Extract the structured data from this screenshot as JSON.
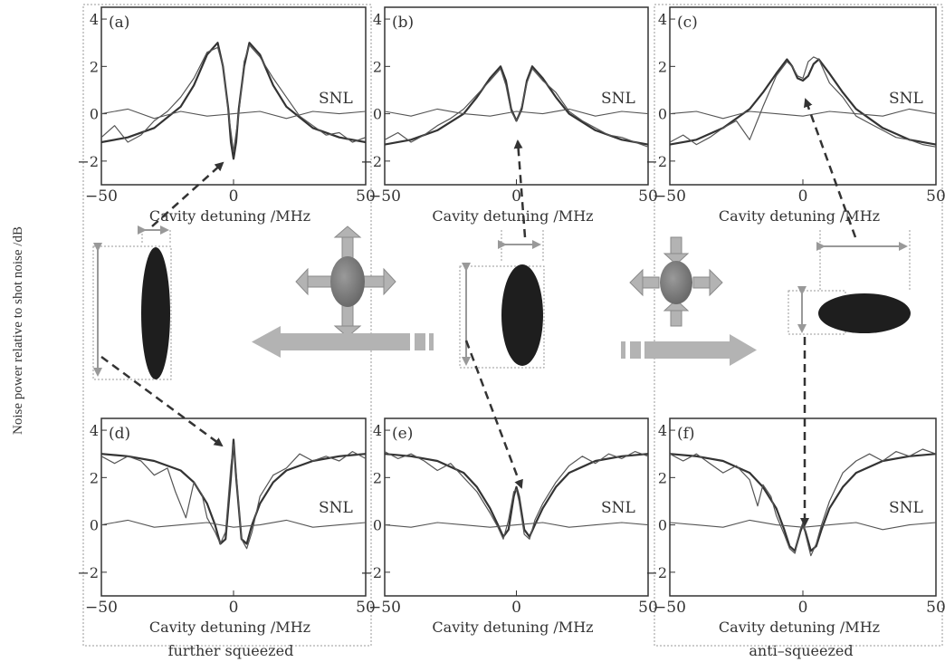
{
  "figure": {
    "ylabel": "Noise power relative to shot noise /dB",
    "left_caption": "further squeezed",
    "right_caption": "anti–squeezed",
    "colors": {
      "ink": "#333333",
      "thin": "#555555",
      "arrow_fill": "#b3b3b3",
      "arrow_stroke": "#8a8a8a",
      "dash_box": "#8f8f8f",
      "ellipse_dark": "#1e1e1e",
      "ellipse_mid": "#7a7a7a"
    }
  },
  "chart_data": [
    {
      "id": "a",
      "type": "line",
      "panel_label": "(a)",
      "xlabel": "Cavity detuning /MHz",
      "ylabel": "",
      "xlim": [
        -50,
        50
      ],
      "ylim": [
        -3,
        4.5
      ],
      "xticks": [
        -50,
        0,
        50
      ],
      "yticks": [
        -2,
        0,
        2,
        4
      ],
      "annotation": "SNL",
      "series": [
        {
          "kind": "fit",
          "x": [
            -50,
            -40,
            -30,
            -20,
            -15,
            -10,
            -6,
            -4,
            -2,
            -1,
            0,
            1,
            2,
            4,
            6,
            10,
            15,
            20,
            30,
            40,
            50
          ],
          "y": [
            -1.2,
            -1.0,
            -0.6,
            0.3,
            1.2,
            2.5,
            3.0,
            2.0,
            0.2,
            -1.2,
            -1.9,
            -1.2,
            0.2,
            2.0,
            3.0,
            2.5,
            1.2,
            0.3,
            -0.6,
            -1.0,
            -1.2
          ]
        },
        {
          "kind": "measured",
          "x": [
            -50,
            -45,
            -40,
            -35,
            -30,
            -25,
            -20,
            -15,
            -10,
            -6,
            -4,
            -2,
            0,
            2,
            4,
            6,
            10,
            15,
            20,
            25,
            30,
            35,
            40,
            45,
            50
          ],
          "y": [
            -1.0,
            -0.5,
            -1.2,
            -0.9,
            -0.3,
            0.1,
            0.7,
            1.5,
            2.6,
            2.8,
            2.0,
            0.1,
            -1.6,
            0.0,
            2.2,
            2.9,
            2.4,
            1.5,
            0.7,
            -0.1,
            -0.5,
            -0.9,
            -0.8,
            -1.2,
            -1.0
          ]
        },
        {
          "kind": "snl",
          "x": [
            -50,
            -40,
            -30,
            -20,
            -10,
            0,
            10,
            20,
            30,
            40,
            50
          ],
          "y": [
            0.0,
            0.2,
            -0.2,
            0.1,
            -0.1,
            0.0,
            0.1,
            -0.2,
            0.1,
            0.0,
            0.1
          ]
        }
      ]
    },
    {
      "id": "b",
      "type": "line",
      "panel_label": "(b)",
      "xlabel": "Cavity detuning /MHz",
      "ylabel": "",
      "xlim": [
        -50,
        50
      ],
      "ylim": [
        -3,
        4.5
      ],
      "xticks": [
        -50,
        0,
        50
      ],
      "yticks": [
        -2,
        0,
        2,
        4
      ],
      "annotation": "SNL",
      "series": [
        {
          "kind": "fit",
          "x": [
            -50,
            -40,
            -30,
            -20,
            -15,
            -10,
            -6,
            -4,
            -2,
            0,
            2,
            4,
            6,
            10,
            15,
            20,
            30,
            40,
            50
          ],
          "y": [
            -1.3,
            -1.1,
            -0.7,
            0.0,
            0.7,
            1.5,
            2.0,
            1.4,
            0.2,
            -0.3,
            0.2,
            1.4,
            2.0,
            1.5,
            0.7,
            0.0,
            -0.7,
            -1.1,
            -1.3
          ]
        },
        {
          "kind": "measured",
          "x": [
            -50,
            -45,
            -40,
            -35,
            -30,
            -25,
            -20,
            -15,
            -10,
            -6,
            -4,
            -2,
            0,
            2,
            4,
            6,
            10,
            15,
            20,
            25,
            30,
            35,
            40,
            45,
            50
          ],
          "y": [
            -1.1,
            -0.8,
            -1.2,
            -0.9,
            -0.5,
            -0.2,
            0.2,
            0.8,
            1.4,
            1.9,
            1.2,
            0.1,
            -0.3,
            0.3,
            1.3,
            1.9,
            1.4,
            0.9,
            0.1,
            -0.3,
            -0.6,
            -0.9,
            -1.0,
            -1.2,
            -1.4
          ]
        },
        {
          "kind": "snl",
          "x": [
            -50,
            -40,
            -30,
            -20,
            -10,
            0,
            10,
            20,
            30,
            40,
            50
          ],
          "y": [
            0.1,
            -0.1,
            0.2,
            0.0,
            -0.1,
            0.1,
            0.0,
            0.2,
            -0.1,
            0.1,
            0.0
          ]
        }
      ]
    },
    {
      "id": "c",
      "type": "line",
      "panel_label": "(c)",
      "xlabel": "Cavity detuning /MHz",
      "ylabel": "",
      "xlim": [
        -50,
        50
      ],
      "ylim": [
        -3,
        4.5
      ],
      "xticks": [
        -50,
        0,
        50
      ],
      "yticks": [
        -2,
        0,
        2,
        4
      ],
      "annotation": "SNL",
      "series": [
        {
          "kind": "fit",
          "x": [
            -50,
            -40,
            -30,
            -20,
            -15,
            -10,
            -6,
            -4,
            -2,
            0,
            2,
            4,
            6,
            10,
            15,
            20,
            30,
            40,
            50
          ],
          "y": [
            -1.3,
            -1.1,
            -0.6,
            0.2,
            0.9,
            1.7,
            2.3,
            2.0,
            1.5,
            1.4,
            1.6,
            2.1,
            2.3,
            1.7,
            0.9,
            0.2,
            -0.6,
            -1.1,
            -1.3
          ]
        },
        {
          "kind": "measured",
          "x": [
            -50,
            -45,
            -40,
            -35,
            -30,
            -25,
            -20,
            -15,
            -10,
            -6,
            -4,
            -2,
            0,
            2,
            4,
            6,
            10,
            15,
            20,
            25,
            30,
            35,
            40,
            45,
            50
          ],
          "y": [
            -1.2,
            -0.9,
            -1.3,
            -1.0,
            -0.6,
            -0.3,
            -1.1,
            0.3,
            1.6,
            2.2,
            2.0,
            1.6,
            1.5,
            2.2,
            2.4,
            2.3,
            1.3,
            0.7,
            -0.1,
            -0.4,
            -0.7,
            -1.0,
            -1.1,
            -1.3,
            -1.4
          ]
        },
        {
          "kind": "snl",
          "x": [
            -50,
            -40,
            -30,
            -20,
            -10,
            0,
            10,
            20,
            30,
            40,
            50
          ],
          "y": [
            0.0,
            0.1,
            -0.2,
            0.1,
            0.0,
            -0.1,
            0.1,
            0.0,
            -0.1,
            0.2,
            0.0
          ]
        }
      ]
    },
    {
      "id": "d",
      "type": "line",
      "panel_label": "(d)",
      "xlabel": "Cavity detuning /MHz",
      "ylabel": "",
      "xlim": [
        -50,
        50
      ],
      "ylim": [
        -3,
        4.5
      ],
      "xticks": [
        -50,
        0,
        50
      ],
      "yticks": [
        -2,
        0,
        2,
        4
      ],
      "annotation": "SNL",
      "series": [
        {
          "kind": "fit",
          "x": [
            -50,
            -40,
            -30,
            -20,
            -15,
            -10,
            -7,
            -5,
            -3,
            -1,
            0,
            1,
            3,
            5,
            7,
            10,
            15,
            20,
            30,
            40,
            50
          ],
          "y": [
            3.0,
            2.9,
            2.7,
            2.3,
            1.8,
            0.9,
            0.0,
            -0.8,
            -0.6,
            2.0,
            3.6,
            2.0,
            -0.6,
            -0.8,
            0.0,
            0.9,
            1.8,
            2.3,
            2.7,
            2.9,
            3.0
          ]
        },
        {
          "kind": "measured",
          "x": [
            -50,
            -45,
            -40,
            -35,
            -30,
            -25,
            -22,
            -18,
            -15,
            -12,
            -10,
            -7,
            -5,
            -3,
            -1,
            0,
            1,
            3,
            5,
            7,
            10,
            15,
            20,
            25,
            30,
            35,
            40,
            45,
            50
          ],
          "y": [
            2.9,
            2.6,
            2.9,
            2.7,
            2.1,
            2.4,
            1.4,
            0.3,
            1.8,
            1.3,
            0.3,
            -0.3,
            -0.8,
            -0.3,
            2.5,
            3.4,
            2.2,
            -0.6,
            -1.0,
            -0.3,
            1.2,
            2.1,
            2.4,
            3.0,
            2.7,
            2.9,
            2.7,
            3.1,
            2.8
          ]
        },
        {
          "kind": "snl",
          "x": [
            -50,
            -40,
            -30,
            -20,
            -10,
            0,
            10,
            20,
            30,
            40,
            50
          ],
          "y": [
            0.0,
            0.2,
            -0.1,
            0.0,
            0.1,
            -0.1,
            0.0,
            0.2,
            -0.1,
            0.0,
            0.1
          ]
        }
      ]
    },
    {
      "id": "e",
      "type": "line",
      "panel_label": "(e)",
      "xlabel": "Cavity detuning /MHz",
      "ylabel": "",
      "xlim": [
        -50,
        50
      ],
      "ylim": [
        -3,
        4.5
      ],
      "xticks": [
        -50,
        0,
        50
      ],
      "yticks": [
        -2,
        0,
        2,
        4
      ],
      "annotation": "SNL",
      "series": [
        {
          "kind": "fit",
          "x": [
            -50,
            -40,
            -30,
            -20,
            -15,
            -10,
            -7,
            -5,
            -3,
            -1,
            0,
            1,
            3,
            5,
            7,
            10,
            15,
            20,
            30,
            40,
            50
          ],
          "y": [
            3.0,
            2.9,
            2.7,
            2.2,
            1.6,
            0.7,
            0.0,
            -0.5,
            -0.2,
            1.2,
            1.6,
            1.2,
            -0.2,
            -0.5,
            0.0,
            0.7,
            1.6,
            2.2,
            2.7,
            2.9,
            3.0
          ]
        },
        {
          "kind": "measured",
          "x": [
            -50,
            -45,
            -40,
            -35,
            -30,
            -25,
            -20,
            -15,
            -10,
            -7,
            -5,
            -3,
            -1,
            0,
            1,
            3,
            5,
            7,
            10,
            15,
            20,
            25,
            30,
            35,
            40,
            45,
            50
          ],
          "y": [
            3.1,
            2.8,
            3.0,
            2.7,
            2.3,
            2.6,
            2.0,
            1.4,
            0.5,
            -0.1,
            -0.6,
            0.2,
            1.4,
            1.5,
            1.0,
            -0.4,
            -0.6,
            0.2,
            0.9,
            1.8,
            2.5,
            2.9,
            2.6,
            3.0,
            2.8,
            3.1,
            2.9
          ]
        },
        {
          "kind": "snl",
          "x": [
            -50,
            -40,
            -30,
            -20,
            -10,
            0,
            10,
            20,
            30,
            40,
            50
          ],
          "y": [
            0.0,
            -0.1,
            0.1,
            0.0,
            -0.1,
            0.0,
            0.1,
            -0.1,
            0.0,
            0.1,
            0.0
          ]
        }
      ]
    },
    {
      "id": "f",
      "type": "line",
      "panel_label": "(f)",
      "xlabel": "Cavity detuning /MHz",
      "ylabel": "",
      "xlim": [
        -50,
        50
      ],
      "ylim": [
        -3,
        4.5
      ],
      "xticks": [
        -50,
        0,
        50
      ],
      "yticks": [
        -2,
        0,
        2,
        4
      ],
      "annotation": "SNL",
      "series": [
        {
          "kind": "fit",
          "x": [
            -50,
            -40,
            -30,
            -20,
            -15,
            -10,
            -7,
            -5,
            -3,
            -1,
            0,
            1,
            3,
            5,
            7,
            10,
            15,
            20,
            30,
            40,
            50
          ],
          "y": [
            3.0,
            2.9,
            2.7,
            2.2,
            1.6,
            0.7,
            -0.2,
            -0.9,
            -1.1,
            -0.3,
            0.0,
            -0.3,
            -1.1,
            -0.9,
            -0.2,
            0.7,
            1.6,
            2.2,
            2.7,
            2.9,
            3.0
          ]
        },
        {
          "kind": "measured",
          "x": [
            -50,
            -45,
            -40,
            -35,
            -30,
            -25,
            -20,
            -17,
            -15,
            -12,
            -10,
            -7,
            -5,
            -3,
            -1,
            0,
            1,
            3,
            5,
            7,
            10,
            15,
            20,
            25,
            30,
            35,
            40,
            45,
            50
          ],
          "y": [
            3.0,
            2.7,
            3.0,
            2.6,
            2.2,
            2.5,
            1.9,
            0.8,
            1.7,
            1.2,
            0.4,
            -0.4,
            -1.0,
            -1.2,
            -0.2,
            0.1,
            -0.4,
            -1.3,
            -0.8,
            0.0,
            1.0,
            2.2,
            2.7,
            3.0,
            2.7,
            3.1,
            2.9,
            3.2,
            3.0
          ]
        },
        {
          "kind": "snl",
          "x": [
            -50,
            -40,
            -30,
            -20,
            -10,
            0,
            10,
            20,
            30,
            40,
            50
          ],
          "y": [
            0.1,
            0.0,
            -0.1,
            0.2,
            0.0,
            -0.1,
            0.0,
            0.1,
            -0.2,
            0.0,
            0.1
          ]
        }
      ]
    }
  ]
}
